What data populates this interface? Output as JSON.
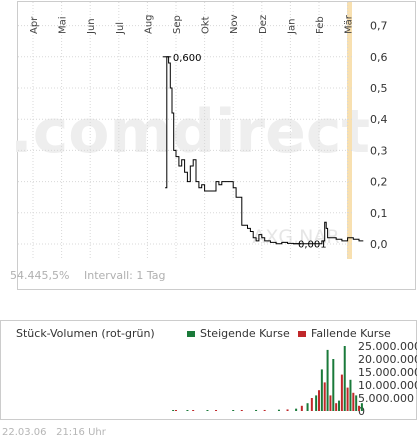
{
  "watermark": ".comdirect",
  "symbol_watermark": "AXG.NAR",
  "colors": {
    "price_line": "#000000",
    "grid": "#cccccc",
    "axis_frame": "#cccccc",
    "accent_band": "#f8e0b0",
    "watermark": "#eeeeee",
    "watermark_accent": "#f8e0b0",
    "rising": "#1a7a3a",
    "falling": "#c0282a",
    "muted_text": "#b0b0b0"
  },
  "price_info": {
    "volume_pct": "54.445,5%",
    "interval_label": "Intervall: 1 Tag"
  },
  "chart_data": [
    {
      "type": "line",
      "title": "",
      "xlabel": "",
      "ylabel": "",
      "categories": [
        "Apr",
        "Mai",
        "Jun",
        "Jul",
        "Aug",
        "Sep",
        "Okt",
        "Nov",
        "Dez",
        "Jan",
        "Feb",
        "Mär"
      ],
      "ylim": [
        0,
        0.75
      ],
      "yticks": [
        "0,7",
        "0,6",
        "0,5",
        "0,4",
        "0,3",
        "0,2",
        "0,1",
        "0,0"
      ],
      "grid": true,
      "annotations": [
        {
          "label": "0,600",
          "value": 0.6
        },
        {
          "label": "0,001",
          "value": 0.001
        }
      ],
      "series": [
        {
          "x": [
            4.62,
            4.68,
            4.74,
            4.8,
            4.86,
            4.92,
            5.0,
            5.1,
            5.2,
            5.3,
            5.4,
            5.5,
            5.6,
            5.7,
            5.8,
            5.9,
            6.0,
            6.2,
            6.4,
            6.5,
            6.6,
            6.8,
            6.9,
            7.0,
            7.1,
            7.3,
            7.5,
            7.6,
            7.7,
            7.8,
            7.9,
            8.0,
            8.1,
            8.3,
            8.5,
            8.7,
            8.9,
            9.1,
            9.3,
            9.6,
            9.9,
            10.1,
            10.2,
            10.25,
            10.3,
            10.4,
            10.6,
            10.8,
            11.0,
            11.2,
            11.4,
            11.55
          ],
          "values": [
            0.18,
            0.6,
            0.58,
            0.5,
            0.42,
            0.3,
            0.28,
            0.25,
            0.27,
            0.23,
            0.2,
            0.25,
            0.27,
            0.2,
            0.18,
            0.19,
            0.17,
            0.17,
            0.2,
            0.19,
            0.2,
            0.2,
            0.2,
            0.18,
            0.15,
            0.06,
            0.05,
            0.04,
            0.02,
            0.01,
            0.03,
            0.02,
            0.01,
            0.005,
            0.001,
            0.005,
            0.002,
            0.001,
            0.001,
            0.001,
            0.001,
            0.01,
            0.07,
            0.05,
            0.02,
            0.02,
            0.015,
            0.01,
            0.02,
            0.015,
            0.01,
            0.01
          ]
        }
      ]
    },
    {
      "type": "bar",
      "title": "Stück-Volumen (rot-grün)",
      "xlabel": "",
      "ylabel": "",
      "ylim": [
        0,
        25000000
      ],
      "yticks": [
        "25.000.000",
        "20.000.000",
        "15.000.000",
        "10.000.000",
        "5.000.000",
        "0"
      ],
      "legend": [
        "Steigende Kurse",
        "Fallende Kurse"
      ],
      "legend_position": "top-right",
      "series": [
        {
          "name": "Steigende Kurse",
          "x": [
            4.9,
            5.4,
            6.1,
            7.0,
            7.8,
            8.6,
            9.2,
            9.6,
            9.9,
            10.1,
            10.3,
            10.5,
            10.7,
            10.9,
            11.1,
            11.3,
            11.5
          ],
          "values": [
            200000,
            150000,
            250000,
            300000,
            400000,
            500000,
            900000,
            3000000,
            6000000,
            16000000,
            23500000,
            20000000,
            4000000,
            25000000,
            12000000,
            6000000,
            3000000
          ]
        },
        {
          "name": "Fallende Kurse",
          "x": [
            5.0,
            5.6,
            6.4,
            7.3,
            8.1,
            8.9,
            9.4,
            9.75,
            10.0,
            10.2,
            10.4,
            10.6,
            10.8,
            11.0,
            11.2,
            11.4
          ],
          "values": [
            150000,
            200000,
            300000,
            250000,
            400000,
            600000,
            2000000,
            5000000,
            8000000,
            11000000,
            6000000,
            3000000,
            14000000,
            9000000,
            7000000,
            2000000
          ]
        }
      ]
    }
  ],
  "timestamp": "22.03.06",
  "time": "21:16 Uhr"
}
